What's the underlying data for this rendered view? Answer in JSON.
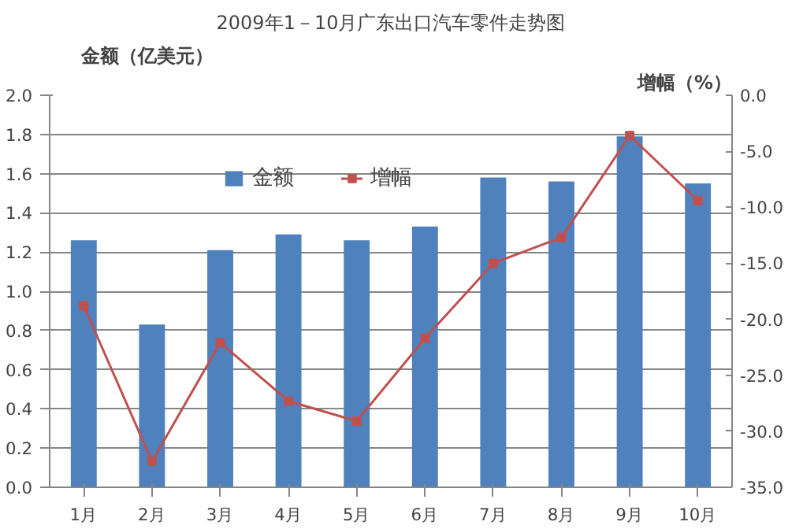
{
  "chart_data": {
    "type": "bar",
    "title": "2009年1－10月广东出口汽车零件走势图",
    "ylabel": "金额（亿美元）",
    "y2label": "增幅（%）",
    "categories": [
      "1月",
      "2月",
      "3月",
      "4月",
      "5月",
      "6月",
      "7月",
      "8月",
      "9月",
      "10月"
    ],
    "series": [
      {
        "name": "金额",
        "color": "#4f81bd",
        "values": [
          1.26,
          0.83,
          1.21,
          1.29,
          1.26,
          1.33,
          1.58,
          1.56,
          1.79,
          1.55
        ]
      },
      {
        "name": "增幅",
        "type": "line",
        "axis": "y2",
        "color": "#c0504d",
        "marker": "square",
        "values": [
          -18.8,
          -32.7,
          -22.1,
          -27.3,
          -29.1,
          -21.7,
          -15.0,
          -12.7,
          -3.6,
          -9.4
        ]
      }
    ],
    "ylim": [
      0,
      2.0
    ],
    "yticks": [
      {
        "value": 0,
        "label": "0.0"
      },
      {
        "value": 0.2,
        "label": "0.2"
      },
      {
        "value": 0.4,
        "label": "0.4"
      },
      {
        "value": 0.6,
        "label": "0.6"
      },
      {
        "value": 0.8,
        "label": "0.8"
      },
      {
        "value": 1.0,
        "label": "1.0"
      },
      {
        "value": 1.2,
        "label": "1.2"
      },
      {
        "value": 1.4,
        "label": "1.4"
      },
      {
        "value": 1.6,
        "label": "1.6"
      },
      {
        "value": 1.8,
        "label": "1.8"
      },
      {
        "value": 2.0,
        "label": "2.0"
      }
    ],
    "y2lim": [
      -35,
      0
    ],
    "y2ticks": [
      {
        "value": -35,
        "label": "-35.0"
      },
      {
        "value": -30,
        "label": "-30.0"
      },
      {
        "value": -25,
        "label": "-25.0"
      },
      {
        "value": -20,
        "label": "-20.0"
      },
      {
        "value": -15,
        "label": "-15.0"
      },
      {
        "value": -10,
        "label": "-10.0"
      },
      {
        "value": -5,
        "label": "-5.0"
      },
      {
        "value": 0,
        "label": "0.0"
      }
    ],
    "grid": "y",
    "legend": "top"
  }
}
